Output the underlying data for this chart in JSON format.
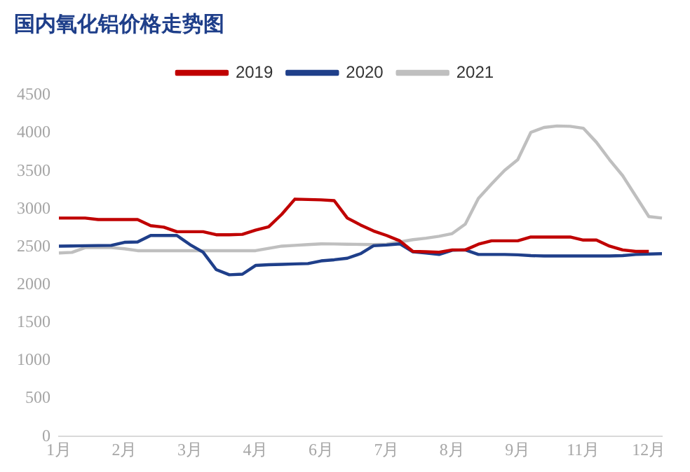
{
  "chart_data": {
    "type": "line",
    "title": "国内氧化铝价格走势图",
    "categories": [
      "1月",
      null,
      null,
      null,
      null,
      "2月",
      null,
      null,
      null,
      null,
      "3月",
      null,
      null,
      null,
      null,
      "4月",
      null,
      null,
      null,
      null,
      "6月",
      null,
      null,
      null,
      null,
      "7月",
      null,
      null,
      null,
      null,
      "8月",
      null,
      null,
      null,
      null,
      "9月",
      null,
      null,
      null,
      null,
      "11月",
      null,
      null,
      null,
      null,
      "12月",
      null
    ],
    "ylim": [
      0,
      4500
    ],
    "yticks": [
      0,
      500,
      1000,
      1500,
      2000,
      2500,
      3000,
      3500,
      4000,
      4500
    ],
    "grid": false,
    "legend": "top",
    "marker": "none",
    "line_style": "solid",
    "series": [
      {
        "name": "2019",
        "color": "#c00000",
        "values": [
          2880,
          2880,
          2880,
          2860,
          2860,
          2860,
          2860,
          2780,
          2760,
          2700,
          2700,
          2700,
          2660,
          2660,
          2665,
          2720,
          2765,
          2930,
          3130,
          3125,
          3120,
          3110,
          2880,
          2790,
          2710,
          2650,
          2580,
          2440,
          2435,
          2430,
          2460,
          2460,
          2535,
          2580,
          2580,
          2580,
          2630,
          2630,
          2630,
          2630,
          2590,
          2590,
          2510,
          2460,
          2440,
          2440,
          null
        ]
      },
      {
        "name": "2020",
        "color": "#1f3f8a",
        "values": [
          2510,
          2512,
          2515,
          2518,
          2520,
          2560,
          2565,
          2650,
          2650,
          2650,
          2530,
          2430,
          2200,
          2132,
          2140,
          2255,
          2265,
          2270,
          2275,
          2280,
          2315,
          2330,
          2350,
          2410,
          2515,
          2525,
          2540,
          2435,
          2420,
          2400,
          2455,
          2460,
          2400,
          2400,
          2400,
          2395,
          2385,
          2380,
          2380,
          2380,
          2380,
          2380,
          2380,
          2385,
          2400,
          2405,
          2410
        ]
      },
      {
        "name": "2021",
        "color": "#bfbfbf",
        "values": [
          2420,
          2428,
          2490,
          2490,
          2490,
          2475,
          2450,
          2450,
          2450,
          2450,
          2450,
          2450,
          2450,
          2450,
          2450,
          2450,
          2480,
          2510,
          2520,
          2530,
          2540,
          2538,
          2535,
          2533,
          2530,
          2535,
          2565,
          2595,
          2615,
          2640,
          2675,
          2800,
          3140,
          3330,
          3510,
          3650,
          4010,
          4075,
          4095,
          4090,
          4065,
          3880,
          3650,
          3440,
          3170,
          2900,
          2880
        ]
      }
    ]
  }
}
